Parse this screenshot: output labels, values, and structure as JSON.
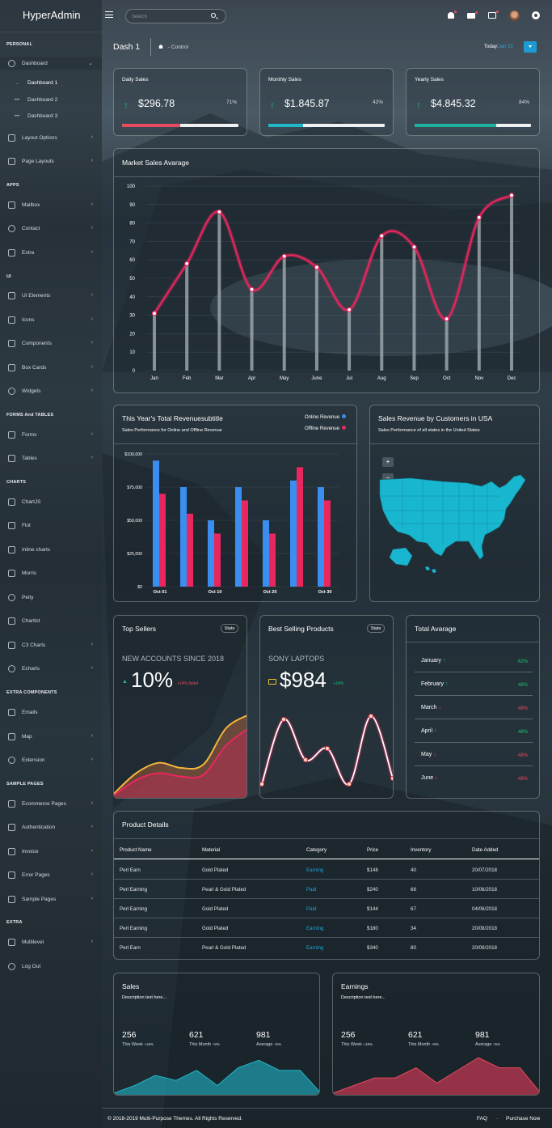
{
  "brand": {
    "name": "HyperAdmin"
  },
  "colors": {
    "accent": "#1e9bd4",
    "teal": "#21b6c8",
    "red": "#e84a5f",
    "green": "#22c07a",
    "pink": "#e8275e",
    "blue": "#3a8ef0"
  },
  "header": {
    "search_placeholder": "Search",
    "icons": [
      "bell-icon",
      "mail-icon",
      "briefcase-icon",
      "avatar",
      "gear-icon"
    ]
  },
  "breadcrumb": {
    "title": "Dash 1",
    "crumb": "- Control",
    "today_label": "Today:",
    "today_value": "Jan 23"
  },
  "sidebar": {
    "sec_personal": "PERSONAL",
    "dashboard": "Dashboard",
    "dash1": "Dashboard 1",
    "dash2": "Dashboard 2",
    "dash3": "Dashboard 3",
    "layout_options": "Layout Options",
    "page_layouts": "Page Layouts",
    "sec_apps": "APPS",
    "mailbox": "Mailbox",
    "contact": "Contact",
    "extra": "Extra",
    "sec_ui": "UI",
    "ui_elements": "UI Elements",
    "icons": "Icons",
    "components": "Components",
    "box_cards": "Box Cards",
    "widgets": "Widgets",
    "sec_forms": "FORMS And TABLES",
    "forms": "Forms",
    "tables": "Tables",
    "sec_charts": "CHARTS",
    "chartjs": "ChartJS",
    "flot": "Flot",
    "inline": "Inline charts",
    "morris": "Morris",
    "peity": "Peity",
    "chartist": "Chartist",
    "c3": "C3 Charts",
    "echarts": "Echarts",
    "sec_extra_comp": "EXTRA COMPONENTS",
    "emails": "Emails",
    "map": "Map",
    "extension": "Extension",
    "sec_sample": "SAMPLE PAGES",
    "ecommerce": "Ecommerce Pages",
    "auth": "Authentication",
    "invoice": "Invoice",
    "error": "Error Pages",
    "sample": "Sample Pages",
    "sec_extra": "EXTRA",
    "multilevel": "Multilevel",
    "logout": "Log Out"
  },
  "stats": [
    {
      "label": "Daily Sales",
      "value": "$296.78",
      "percent": "71%",
      "fill": 0.5,
      "color": "#e84a5f"
    },
    {
      "label": "Monthly Sales",
      "value": "$1.845.87",
      "percent": "42%",
      "fill": 0.3,
      "color": "#21b6c8"
    },
    {
      "label": "Yearly Sales",
      "value": "$4.845.32",
      "percent": "84%",
      "fill": 0.7,
      "color": "#1fb0a0"
    }
  ],
  "market": {
    "title": "Market Sales Avarage"
  },
  "revenue": {
    "title": "This Year's Total Revenuesubtitle",
    "subtitle": "Sales Performance for Online and Offline Revenue",
    "legend_online": "Online Revenue",
    "legend_offline": "Offline Revenue"
  },
  "usa": {
    "title": "Sales Revenue by Customers in USA",
    "subtitle": "Sales Performance of all states in the United States",
    "zoom_in": "+",
    "zoom_out": "−"
  },
  "top_sellers": {
    "title": "Top Sellers",
    "badge": "Stats",
    "caption": "NEW ACCOUNTS SINCE 2018",
    "value": "10%",
    "delta": "+14% failed"
  },
  "best_selling": {
    "title": "Best Selling Products",
    "badge": "Stats",
    "caption": "SONY LAPTOPS",
    "value": "$984",
    "delta": "+14%"
  },
  "total_avg": {
    "title": "Total Avarage",
    "rows": [
      {
        "month": "January",
        "pct": "62%",
        "dir": "up"
      },
      {
        "month": "February",
        "pct": "48%",
        "dir": "up"
      },
      {
        "month": "March",
        "pct": "48%",
        "dir": "down"
      },
      {
        "month": "April",
        "pct": "48%",
        "dir": "up"
      },
      {
        "month": "May",
        "pct": "48%",
        "dir": "down"
      },
      {
        "month": "June",
        "pct": "48%",
        "dir": "down"
      }
    ]
  },
  "products": {
    "title": "Product Details",
    "headers": [
      "Product Name",
      "Material",
      "Category",
      "Price",
      "Inventory",
      "Date Added"
    ],
    "rows": [
      [
        "Perl Earn",
        "Gold Plated",
        "Earning",
        "$148",
        "40",
        "20/07/2018"
      ],
      [
        "Perl Earning",
        "Pearl & Gold Plated",
        "Paid",
        "$240",
        "68",
        "10/06/2018"
      ],
      [
        "Perl Earning",
        "Gold Plated",
        "Paid",
        "$144",
        "67",
        "04/06/2018"
      ],
      [
        "Perl Earning",
        "Gold Plated",
        "Earning",
        "$180",
        "34",
        "20/08/2018"
      ],
      [
        "Perl Earn",
        "Pearl & Gold Plated",
        "Earning",
        "$340",
        "80",
        "20/09/2018"
      ]
    ]
  },
  "sales_card": {
    "title": "Sales",
    "desc": "Description text here...",
    "items": [
      {
        "num": "256",
        "label": "This Week",
        "delta": "+18%"
      },
      {
        "num": "621",
        "label": "This Month",
        "delta": "+8%"
      },
      {
        "num": "981",
        "label": "Average",
        "delta": "+5%"
      }
    ]
  },
  "earnings_card": {
    "title": "Earnings",
    "desc": "Description text here...",
    "items": [
      {
        "num": "256",
        "label": "This Week",
        "delta": "+18%"
      },
      {
        "num": "621",
        "label": "This Month",
        "delta": "+8%"
      },
      {
        "num": "981",
        "label": "Average",
        "delta": "+5%"
      }
    ]
  },
  "footer": {
    "copyright": "© 2018-2019 Multi-Purpose Themes. All Rights Reserved.",
    "faq": "FAQ",
    "sep": "·",
    "purchase": "Purchase Now"
  },
  "chart_data": [
    {
      "type": "line",
      "title": "Market Sales Avarage",
      "categories": [
        "Jan",
        "Feb",
        "Mar",
        "Apr",
        "May",
        "June",
        "Jul",
        "Aug",
        "Sep",
        "Oct",
        "Nov",
        "Dec"
      ],
      "values": [
        31,
        58,
        86,
        44,
        62,
        56,
        33,
        73,
        67,
        28,
        83,
        95
      ],
      "ylim": [
        0,
        100
      ],
      "yticks": [
        0,
        10,
        20,
        30,
        40,
        50,
        60,
        70,
        80,
        90,
        100
      ],
      "grid": true
    },
    {
      "type": "bar",
      "title": "This Year's Total Revenuesubtitle",
      "categories": [
        "Oct 01",
        "",
        "Oct 10",
        "",
        "Oct 20",
        "",
        "Oct 30"
      ],
      "series": [
        {
          "name": "Online Revenue",
          "values": [
            95000,
            75000,
            50000,
            75000,
            50000,
            80000,
            75000
          ],
          "color": "#3a8ef0"
        },
        {
          "name": "Offline Revenue",
          "values": [
            70000,
            55000,
            40000,
            65000,
            40000,
            90000,
            65000
          ],
          "color": "#e8275e"
        }
      ],
      "ylim": [
        0,
        100000
      ],
      "yticks": [
        "$0",
        "$25,000",
        "$50,000",
        "$75,000",
        "$100,000"
      ],
      "ytick_values": [
        0,
        25000,
        50000,
        75000,
        100000
      ]
    },
    {
      "type": "area",
      "title": "Top Sellers",
      "series": [
        {
          "values": [
            2,
            14,
            20,
            17,
            19,
            40,
            48
          ]
        },
        {
          "values": [
            1,
            10,
            14,
            12,
            13,
            30,
            40
          ]
        }
      ]
    },
    {
      "type": "line",
      "title": "Best Selling Products",
      "values": [
        8,
        88,
        38,
        52,
        8,
        92,
        15
      ]
    },
    {
      "type": "area",
      "title": "Sales",
      "values": [
        2,
        8,
        16,
        12,
        20,
        8,
        22,
        28,
        20,
        20,
        2
      ]
    },
    {
      "type": "area",
      "title": "Earnings",
      "values": [
        2,
        8,
        14,
        14,
        22,
        10,
        20,
        30,
        22,
        22,
        2
      ]
    }
  ]
}
